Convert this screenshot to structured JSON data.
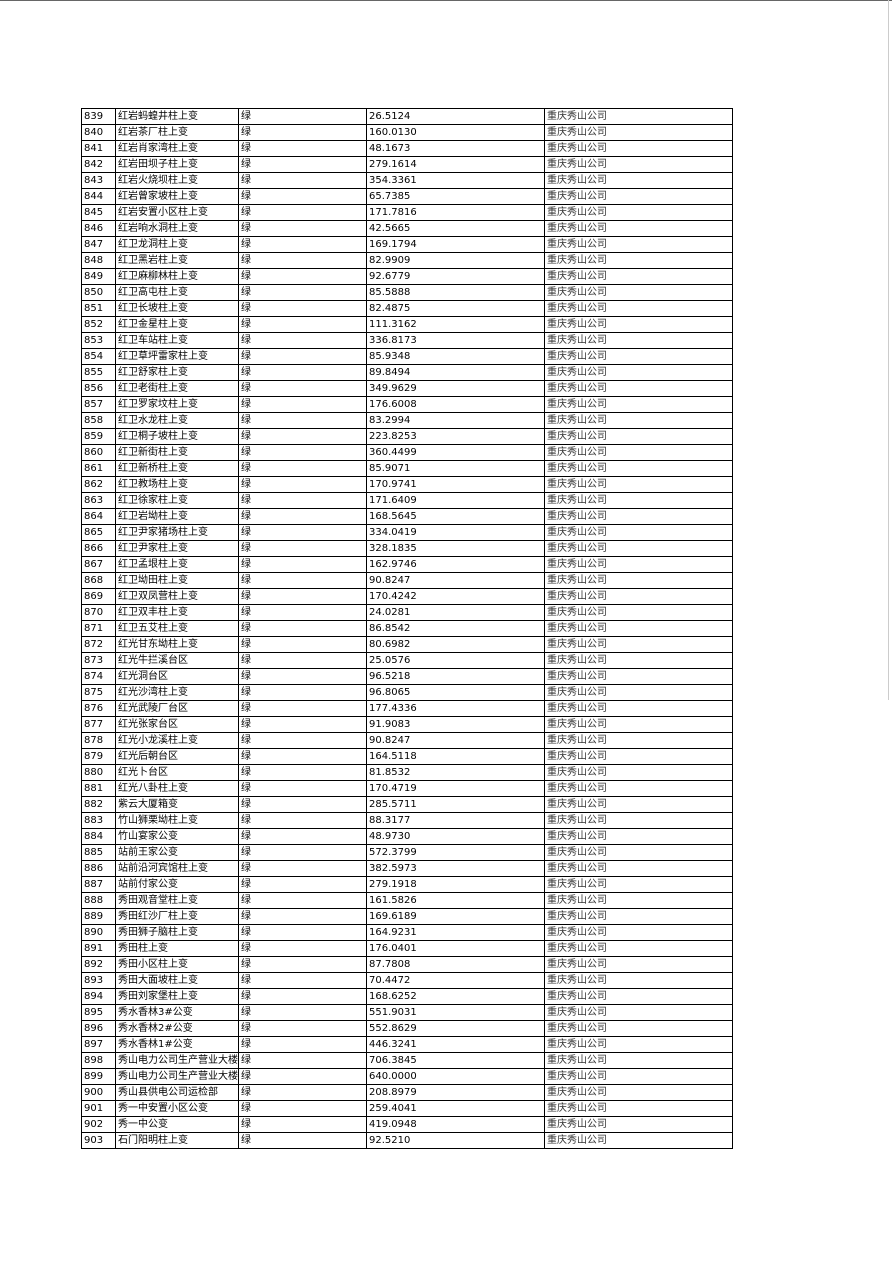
{
  "table": {
    "rows": [
      [
        "839",
        "红岩蚂蝗井柱上变",
        "绿",
        "26.5124",
        "重庆秀山公司"
      ],
      [
        "840",
        "红岩茶厂柱上变",
        "绿",
        "160.0130",
        "重庆秀山公司"
      ],
      [
        "841",
        "红岩肖家湾柱上变",
        "绿",
        "48.1673",
        "重庆秀山公司"
      ],
      [
        "842",
        "红岩田坝子柱上变",
        "绿",
        "279.1614",
        "重庆秀山公司"
      ],
      [
        "843",
        "红岩火烧坝柱上变",
        "绿",
        "354.3361",
        "重庆秀山公司"
      ],
      [
        "844",
        "红岩曾家坡柱上变",
        "绿",
        "65.7385",
        "重庆秀山公司"
      ],
      [
        "845",
        "红岩安置小区柱上变",
        "绿",
        "171.7816",
        "重庆秀山公司"
      ],
      [
        "846",
        "红岩响水洞柱上变",
        "绿",
        "42.5665",
        "重庆秀山公司"
      ],
      [
        "847",
        "红卫龙洞柱上变",
        "绿",
        "169.1794",
        "重庆秀山公司"
      ],
      [
        "848",
        "红卫黑岩柱上变",
        "绿",
        "82.9909",
        "重庆秀山公司"
      ],
      [
        "849",
        "红卫麻柳林柱上变",
        "绿",
        "92.6779",
        "重庆秀山公司"
      ],
      [
        "850",
        "红卫高屯柱上变",
        "绿",
        "85.5888",
        "重庆秀山公司"
      ],
      [
        "851",
        "红卫长坡柱上变",
        "绿",
        "82.4875",
        "重庆秀山公司"
      ],
      [
        "852",
        "红卫金星柱上变",
        "绿",
        "111.3162",
        "重庆秀山公司"
      ],
      [
        "853",
        "红卫车站柱上变",
        "绿",
        "336.8173",
        "重庆秀山公司"
      ],
      [
        "854",
        "红卫草坪雷家柱上变",
        "绿",
        "85.9348",
        "重庆秀山公司"
      ],
      [
        "855",
        "红卫舒家柱上变",
        "绿",
        "89.8494",
        "重庆秀山公司"
      ],
      [
        "856",
        "红卫老街柱上变",
        "绿",
        "349.9629",
        "重庆秀山公司"
      ],
      [
        "857",
        "红卫罗家坟柱上变",
        "绿",
        "176.6008",
        "重庆秀山公司"
      ],
      [
        "858",
        "红卫水龙柱上变",
        "绿",
        "83.2994",
        "重庆秀山公司"
      ],
      [
        "859",
        "红卫桐子坡柱上变",
        "绿",
        "223.8253",
        "重庆秀山公司"
      ],
      [
        "860",
        "红卫新街柱上变",
        "绿",
        "360.4499",
        "重庆秀山公司"
      ],
      [
        "861",
        "红卫新桥柱上变",
        "绿",
        "85.9071",
        "重庆秀山公司"
      ],
      [
        "862",
        "红卫教场柱上变",
        "绿",
        "170.9741",
        "重庆秀山公司"
      ],
      [
        "863",
        "红卫徐家柱上变",
        "绿",
        "171.6409",
        "重庆秀山公司"
      ],
      [
        "864",
        "红卫岩坳柱上变",
        "绿",
        "168.5645",
        "重庆秀山公司"
      ],
      [
        "865",
        "红卫尹家猪场柱上变",
        "绿",
        "334.0419",
        "重庆秀山公司"
      ],
      [
        "866",
        "红卫尹家柱上变",
        "绿",
        "328.1835",
        "重庆秀山公司"
      ],
      [
        "867",
        "红卫孟垠柱上变",
        "绿",
        "162.9746",
        "重庆秀山公司"
      ],
      [
        "868",
        "红卫坳田柱上变",
        "绿",
        "90.8247",
        "重庆秀山公司"
      ],
      [
        "869",
        "红卫双凤营柱上变",
        "绿",
        "170.4242",
        "重庆秀山公司"
      ],
      [
        "870",
        "红卫双丰柱上变",
        "绿",
        "24.0281",
        "重庆秀山公司"
      ],
      [
        "871",
        "红卫五艾柱上变",
        "绿",
        "86.8542",
        "重庆秀山公司"
      ],
      [
        "872",
        "红光甘东坳柱上变",
        "绿",
        "80.6982",
        "重庆秀山公司"
      ],
      [
        "873",
        "红光牛拦溪台区",
        "绿",
        "25.0576",
        "重庆秀山公司"
      ],
      [
        "874",
        "红光洞台区",
        "绿",
        "96.5218",
        "重庆秀山公司"
      ],
      [
        "875",
        "红光沙湾柱上变",
        "绿",
        "96.8065",
        "重庆秀山公司"
      ],
      [
        "876",
        "红光武陵厂台区",
        "绿",
        "177.4336",
        "重庆秀山公司"
      ],
      [
        "877",
        "红光张家台区",
        "绿",
        "91.9083",
        "重庆秀山公司"
      ],
      [
        "878",
        "红光小龙溪柱上变",
        "绿",
        "90.8247",
        "重庆秀山公司"
      ],
      [
        "879",
        "红光后朝台区",
        "绿",
        "164.5118",
        "重庆秀山公司"
      ],
      [
        "880",
        "红光卜台区",
        "绿",
        "81.8532",
        "重庆秀山公司"
      ],
      [
        "881",
        "红光八卦柱上变",
        "绿",
        "170.4719",
        "重庆秀山公司"
      ],
      [
        "882",
        "紫云大厦箱变",
        "绿",
        "285.5711",
        "重庆秀山公司"
      ],
      [
        "883",
        "竹山狮栗坳柱上变",
        "绿",
        "88.3177",
        "重庆秀山公司"
      ],
      [
        "884",
        "竹山宴家公变",
        "绿",
        "48.9730",
        "重庆秀山公司"
      ],
      [
        "885",
        "站前王家公变",
        "绿",
        "572.3799",
        "重庆秀山公司"
      ],
      [
        "886",
        "站前沿河宾馆柱上变",
        "绿",
        "382.5973",
        "重庆秀山公司"
      ],
      [
        "887",
        "站前付家公变",
        "绿",
        "279.1918",
        "重庆秀山公司"
      ],
      [
        "888",
        "秀田观音堂柱上变",
        "绿",
        "161.5826",
        "重庆秀山公司"
      ],
      [
        "889",
        "秀田红沙厂柱上变",
        "绿",
        "169.6189",
        "重庆秀山公司"
      ],
      [
        "890",
        "秀田狮子脑柱上变",
        "绿",
        "164.9231",
        "重庆秀山公司"
      ],
      [
        "891",
        "秀田柱上变",
        "绿",
        "176.0401",
        "重庆秀山公司"
      ],
      [
        "892",
        "秀田小区柱上变",
        "绿",
        "87.7808",
        "重庆秀山公司"
      ],
      [
        "893",
        "秀田大面坡柱上变",
        "绿",
        "70.4472",
        "重庆秀山公司"
      ],
      [
        "894",
        "秀田刘家堡柱上变",
        "绿",
        "168.6252",
        "重庆秀山公司"
      ],
      [
        "895",
        "秀水香林3#公变",
        "绿",
        "551.9031",
        "重庆秀山公司"
      ],
      [
        "896",
        "秀水香林2#公变",
        "绿",
        "552.8629",
        "重庆秀山公司"
      ],
      [
        "897",
        "秀水香林1#公变",
        "绿",
        "446.3241",
        "重庆秀山公司"
      ],
      [
        "898",
        "秀山电力公司生产营业大楼",
        "绿",
        "706.3845",
        "重庆秀山公司"
      ],
      [
        "899",
        "秀山电力公司生产营业大楼",
        "绿",
        "640.0000",
        "重庆秀山公司"
      ],
      [
        "900",
        "秀山县供电公司运检部",
        "绿",
        "208.8979",
        "重庆秀山公司"
      ],
      [
        "901",
        "秀一中安置小区公变",
        "绿",
        "259.4041",
        "重庆秀山公司"
      ],
      [
        "902",
        "秀一中公变",
        "绿",
        "419.0948",
        "重庆秀山公司"
      ],
      [
        "903",
        "石门阳明柱上变",
        "绿",
        "92.5210",
        "重庆秀山公司"
      ]
    ]
  }
}
